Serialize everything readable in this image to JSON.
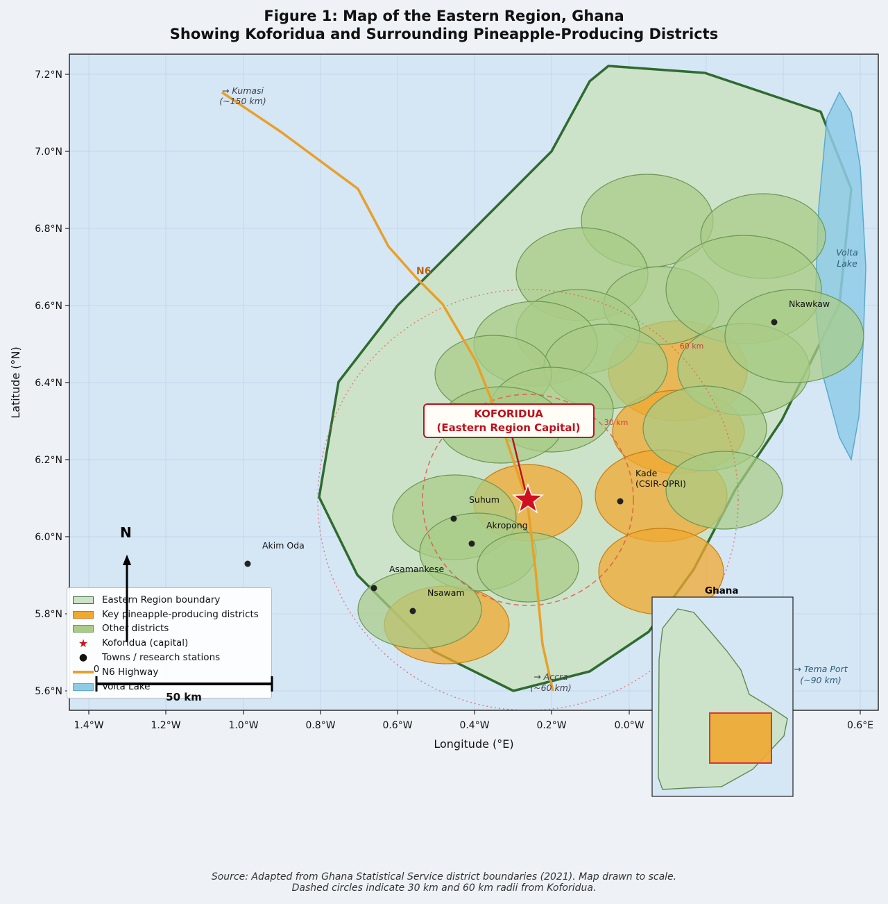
{
  "title": {
    "line1": "Figure 1: Map of the Eastern Region, Ghana",
    "line2": "Showing Koforidua and Surrounding Pineapple-Producing Districts"
  },
  "axes": {
    "xlabel": "Longitude (°E)",
    "ylabel": "Latitude (°N)",
    "x_ticks": [
      "1.4°W",
      "1.2°W",
      "1.0°W",
      "0.8°W",
      "0.6°W",
      "0.4°W",
      "0.2°W",
      "0.0°W",
      "0.6°E"
    ],
    "y_ticks": [
      "7.2°N",
      "7.0°N",
      "6.8°N",
      "6.6°N",
      "6.4°N",
      "6.2°N",
      "6.0°N",
      "5.8°N",
      "5.6°N"
    ]
  },
  "highway": {
    "label": "N6",
    "kumasi_line1": "→ Kumasi",
    "kumasi_line2": "(~150 km)",
    "accra_line1": "→ Accra",
    "accra_line2": "(~60 km)"
  },
  "capital": {
    "name": "KOFORIDUA",
    "subtitle": "(Eastern Region Capital)"
  },
  "rings": {
    "inner": "30 km",
    "outer": "60 km"
  },
  "towns": {
    "nkawkaw": "Nkawkaw",
    "kade": "Kade",
    "kade_sub": "(CSIR-OPRI)",
    "suhum": "Suhum",
    "akropong": "Akropong",
    "akim_oda": "Akim Oda",
    "asamankese": "Asamankese",
    "nsawam": "Nsawam"
  },
  "volta": {
    "line1": "Volta",
    "line2": "Lake"
  },
  "tema": {
    "line1": "→ Tema Port",
    "line2": "(~90 km)"
  },
  "compass": "N",
  "scale": {
    "zero": "0",
    "label": "50 km"
  },
  "inset": {
    "title": "Ghana"
  },
  "legend": {
    "boundary": "Eastern Region boundary",
    "key": "Key pineapple-producing districts",
    "other": "Other districts",
    "capital": "Koforidua (capital)",
    "towns": "Towns / research stations",
    "highway": "N6 Highway",
    "lake": "Volta Lake"
  },
  "colors": {
    "ocean": "#d5e6f5",
    "region_fill": "#cde3c9",
    "region_edge": "#2f6b2f",
    "key_district": "#f0a830",
    "other_district": "#a9cc86",
    "lake": "#8fcbe6",
    "highway": "#e8a02a",
    "capital": "#d0101f"
  },
  "source": {
    "line1": "Source: Adapted from Ghana Statistical Service district boundaries (2021). Map drawn to scale.",
    "line2": "Dashed circles indicate 30 km and 60 km radii from Koforidua."
  }
}
